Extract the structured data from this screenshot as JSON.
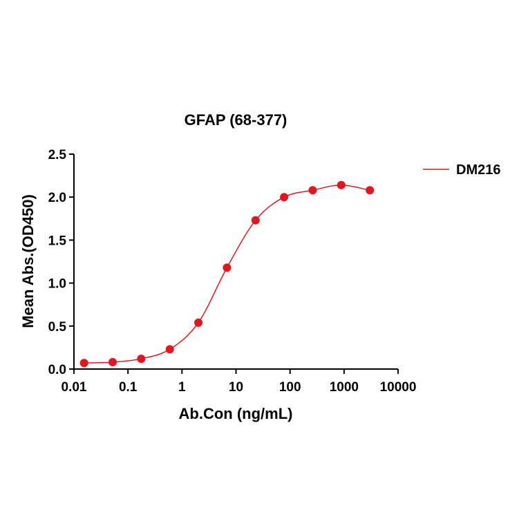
{
  "chart_data": {
    "type": "scatter",
    "title": "GFAP (68-377)",
    "x_label": "Ab.Con (ng/mL)",
    "y_label": "Mean Abs.(OD450)",
    "x_scale": "log",
    "xlim": [
      0.01,
      10000
    ],
    "xticks": [
      0.01,
      0.1,
      1,
      10,
      100,
      1000,
      10000
    ],
    "ylim": [
      0,
      2.5
    ],
    "yticks": [
      {
        "value": 0,
        "label": "0.0"
      },
      0.5,
      {
        "value": 1,
        "label": "1.0"
      },
      1.5,
      {
        "value": 2,
        "label": "2.0"
      },
      2.5
    ],
    "legend_position": "right",
    "series": [
      {
        "name": "DM216",
        "color": "#e8141b",
        "x": [
          0.0154,
          0.0521,
          0.176,
          0.595,
          2.01,
          6.8,
          23.0,
          77.7,
          262.6,
          887.6,
          3000
        ],
        "values": [
          0.07,
          0.08,
          0.12,
          0.23,
          0.54,
          1.18,
          1.73,
          2.0,
          2.08,
          2.14,
          2.08
        ]
      }
    ]
  }
}
